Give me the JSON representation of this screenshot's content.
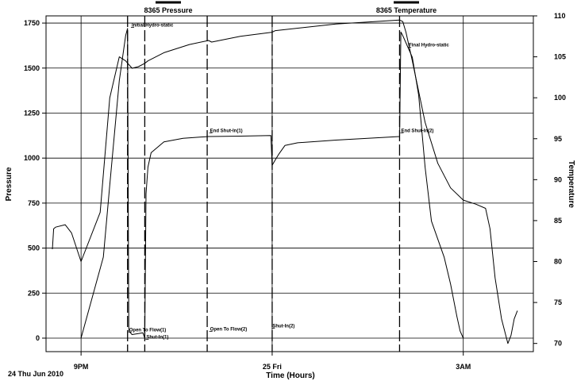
{
  "chart_data": {
    "type": "line",
    "xlabel": "Time (Hours)",
    "ylabel": "Pressure",
    "y2label": "Temperature",
    "date_label": "24 Thu Jun 2010",
    "x_ticks": [
      {
        "hour": 21,
        "label": "9PM"
      },
      {
        "hour": 24,
        "label": "25 Fri"
      },
      {
        "hour": 27,
        "label": "3AM"
      }
    ],
    "xlim": [
      20.45,
      28.1
    ],
    "ylim": [
      -75,
      1790
    ],
    "y2lim": [
      69,
      110
    ],
    "y_ticks": [
      0,
      250,
      500,
      750,
      1000,
      1250,
      1500,
      1750
    ],
    "y2_ticks": [
      70,
      75,
      80,
      85,
      90,
      95,
      100,
      105,
      110
    ],
    "legend": [
      "8365 Pressure",
      "8365 Temperature"
    ],
    "grid": true,
    "event_lines": [
      {
        "hour": 21.73,
        "style": "dashed"
      },
      {
        "hour": 22.0,
        "style": "dashed"
      },
      {
        "hour": 22.98,
        "style": "dashed"
      },
      {
        "hour": 24.0,
        "style": "dashed"
      },
      {
        "hour": 26.0,
        "style": "dashed"
      }
    ],
    "annotations": [
      {
        "text": "Initial Hydro-static",
        "hour": 21.77,
        "value": 1730
      },
      {
        "text": "End Shut-In(1)",
        "hour": 23.0,
        "value": 1145
      },
      {
        "text": "End Shut-In(2)",
        "hour": 26.0,
        "value": 1145
      },
      {
        "text": "Final Hydro-static",
        "hour": 26.12,
        "value": 1620
      },
      {
        "text": "Open To Flow(1)",
        "hour": 21.73,
        "value": 38
      },
      {
        "text": "Shut-In(1)",
        "hour": 22.0,
        "value": -2
      },
      {
        "text": "Open To Flow(2)",
        "hour": 23.0,
        "value": 42
      },
      {
        "text": "Shut-In(2)",
        "hour": 23.98,
        "value": 60
      }
    ],
    "series": [
      {
        "name": "8365 Pressure",
        "axis": "left",
        "x": [
          21.0,
          21.35,
          21.45,
          21.6,
          21.7,
          21.73,
          21.75,
          21.8,
          21.9,
          21.97,
          21.99,
          22.0,
          22.02,
          22.05,
          22.1,
          22.3,
          22.6,
          23.0,
          23.5,
          23.98,
          24.0,
          24.05,
          24.1,
          24.2,
          24.4,
          25.0,
          25.5,
          26.0,
          26.02,
          26.05,
          26.1,
          26.2,
          26.3,
          26.4,
          26.5,
          26.7,
          26.8,
          26.9,
          26.95,
          27.0
        ],
        "y": [
          0,
          450,
          850,
          1430,
          1680,
          1720,
          40,
          20,
          25,
          30,
          10,
          0,
          800,
          950,
          1030,
          1090,
          1110,
          1120,
          1122,
          1125,
          960,
          990,
          1020,
          1070,
          1085,
          1100,
          1110,
          1120,
          1700,
          1680,
          1640,
          1560,
          1350,
          950,
          650,
          450,
          300,
          120,
          40,
          0
        ]
      },
      {
        "name": "8365 Temperature",
        "axis": "right",
        "x": [
          20.55,
          20.57,
          20.6,
          20.75,
          20.85,
          21.0,
          21.3,
          21.45,
          21.6,
          21.7,
          21.8,
          21.9,
          22.0,
          22.05,
          22.3,
          22.7,
          23.0,
          23.05,
          23.5,
          24.0,
          24.05,
          25.0,
          26.0,
          26.05,
          26.1,
          26.2,
          26.4,
          26.6,
          26.8,
          27.0,
          27.2,
          27.35,
          27.42,
          27.5,
          27.6,
          27.7,
          27.75,
          27.8,
          27.85
        ],
        "y": [
          81.5,
          84,
          84.2,
          84.5,
          83.5,
          80,
          86,
          100,
          105,
          104.5,
          103.6,
          103.8,
          104.2,
          104.5,
          105.5,
          106.5,
          107,
          106.8,
          107.5,
          108,
          108.2,
          109,
          109.5,
          109.3,
          108,
          104.5,
          97,
          92,
          89,
          87.5,
          87,
          86.5,
          84,
          78,
          73,
          70,
          71,
          73,
          74
        ]
      }
    ]
  }
}
